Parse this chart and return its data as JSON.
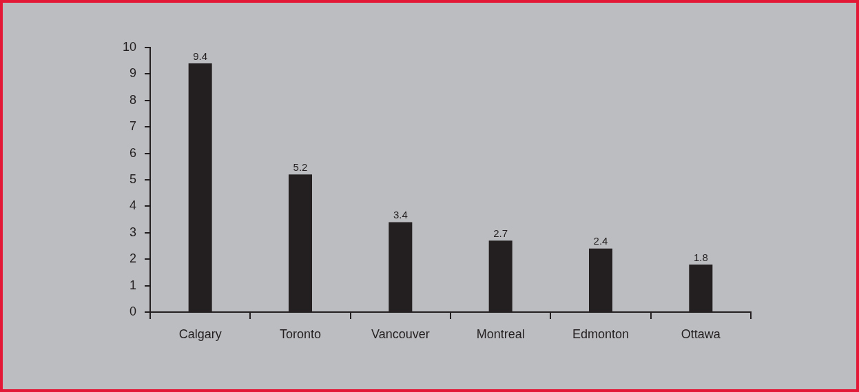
{
  "chart_data": {
    "type": "bar",
    "categories": [
      "Calgary",
      "Toronto",
      "Vancouver",
      "Montreal",
      "Edmonton",
      "Ottawa"
    ],
    "values": [
      9.4,
      5.2,
      3.4,
      2.7,
      2.4,
      1.8
    ],
    "color": "#231f20",
    "ylim": [
      0,
      10
    ],
    "yticks": [
      0,
      1,
      2,
      3,
      4,
      5,
      6,
      7,
      8,
      9,
      10
    ],
    "grid": false,
    "legend": false,
    "data_labels": true
  }
}
